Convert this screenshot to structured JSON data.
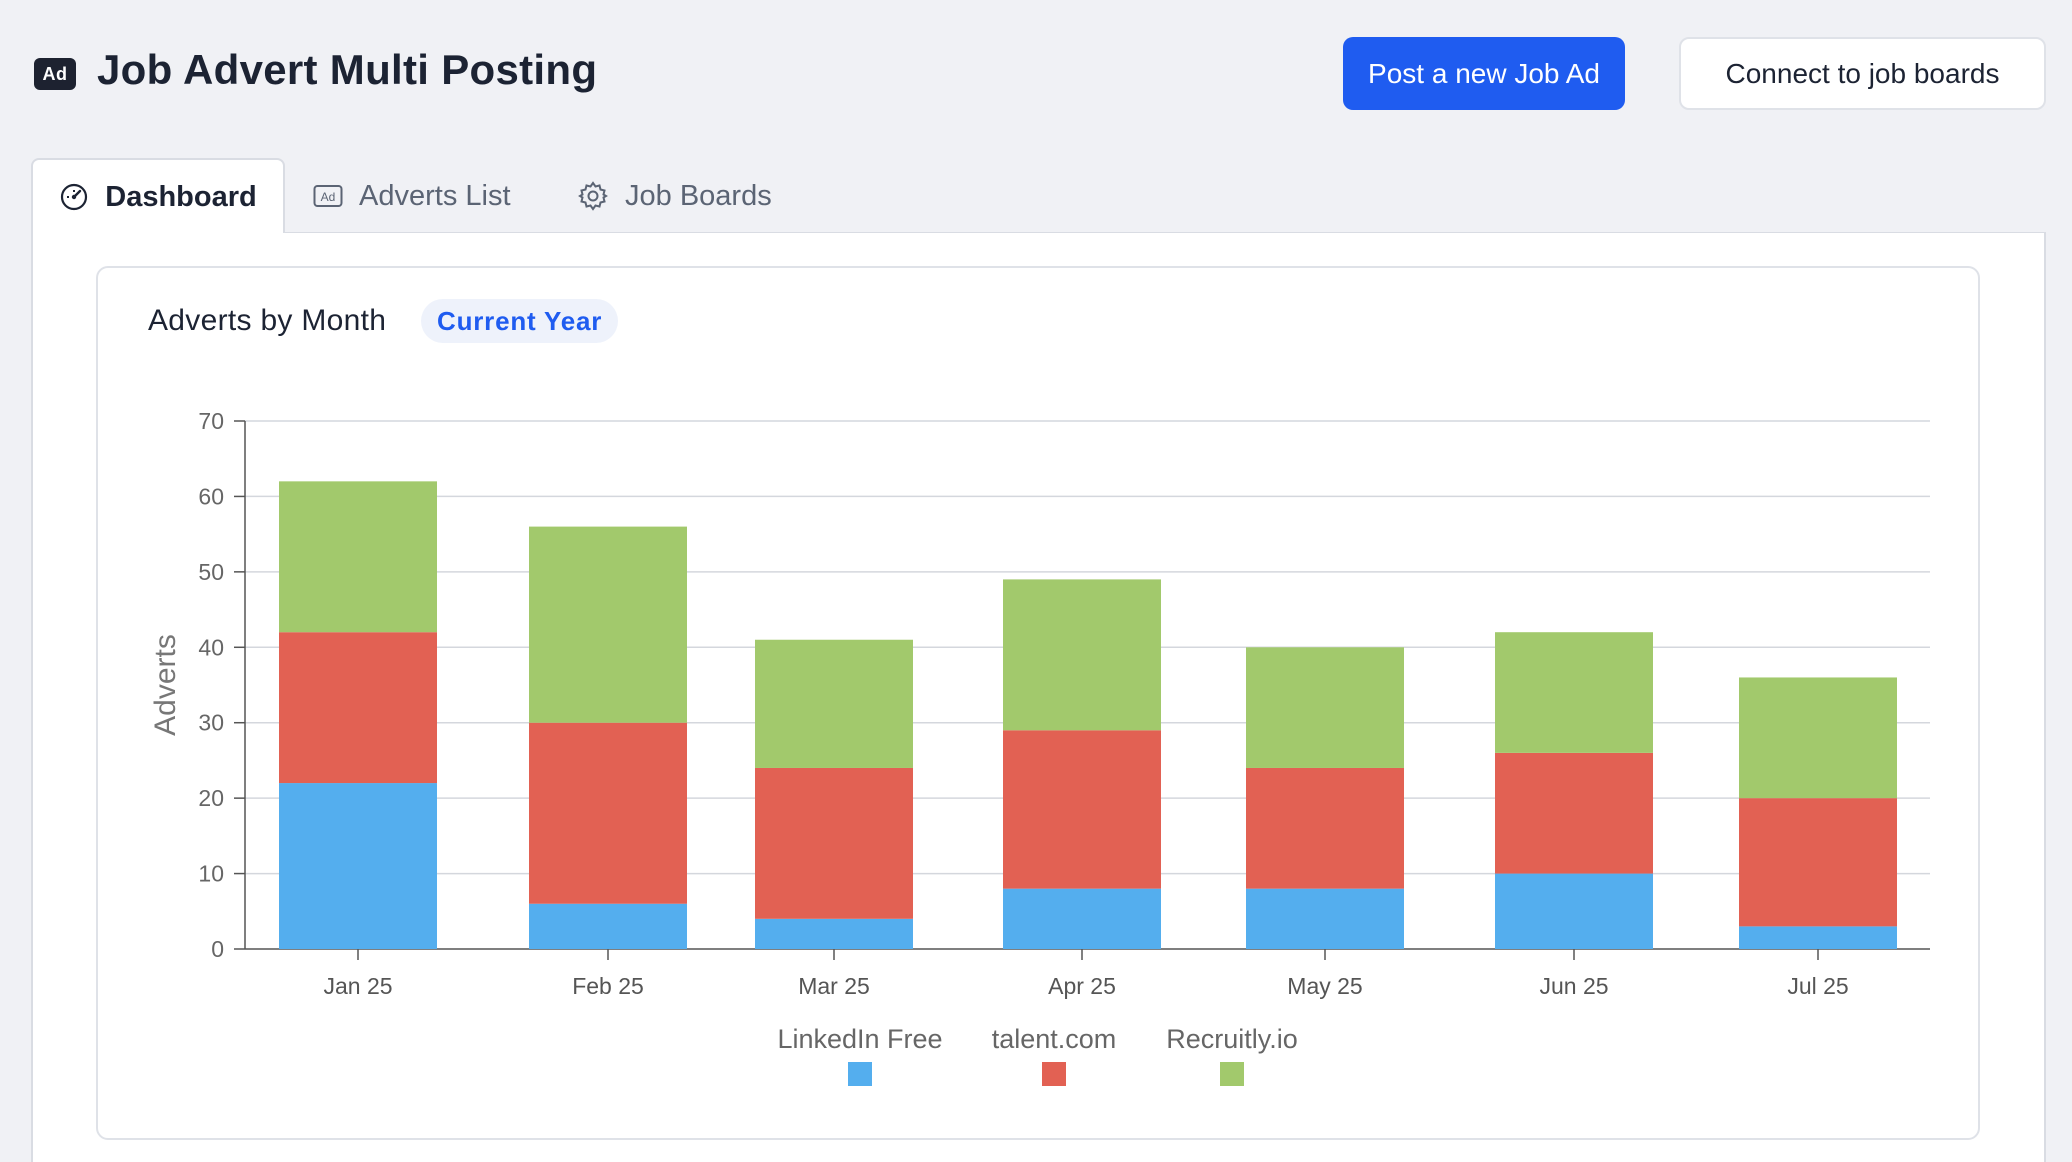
{
  "header": {
    "logo_text": "Ad",
    "title": "Job Advert Multi Posting",
    "primary_button": "Post a new Job Ad",
    "secondary_button": "Connect to job boards"
  },
  "tabs": [
    {
      "label": "Dashboard",
      "icon": "gauge-icon",
      "active": true
    },
    {
      "label": "Adverts List",
      "icon": "ad-icon",
      "active": false
    },
    {
      "label": "Job Boards",
      "icon": "gear-icon",
      "active": false
    }
  ],
  "card": {
    "title": "Adverts by Month",
    "period": "Current Year"
  },
  "colors": {
    "accent": "#1f5cf0",
    "linkedin": "#54aeee",
    "talent": "#e26153",
    "recruitly": "#a2c96c"
  },
  "chart_data": {
    "type": "bar",
    "stacked": true,
    "title": "Adverts by Month",
    "xlabel": "",
    "ylabel": "Adverts",
    "ylim": [
      0,
      70
    ],
    "yticks": [
      0,
      10,
      20,
      30,
      40,
      50,
      60,
      70
    ],
    "grid": true,
    "legend": "bottom",
    "categories": [
      "Jan 25",
      "Feb 25",
      "Mar 25",
      "Apr 25",
      "May 25",
      "Jun 25",
      "Jul 25"
    ],
    "series": [
      {
        "name": "LinkedIn Free",
        "color": "#54aeee",
        "values": [
          22,
          6,
          4,
          8,
          8,
          10,
          3
        ]
      },
      {
        "name": "talent.com",
        "color": "#e26153",
        "values": [
          20,
          24,
          20,
          21,
          16,
          16,
          17
        ]
      },
      {
        "name": "Recruitly.io",
        "color": "#a2c96c",
        "values": [
          20,
          26,
          17,
          20,
          16,
          16,
          16
        ]
      }
    ]
  }
}
